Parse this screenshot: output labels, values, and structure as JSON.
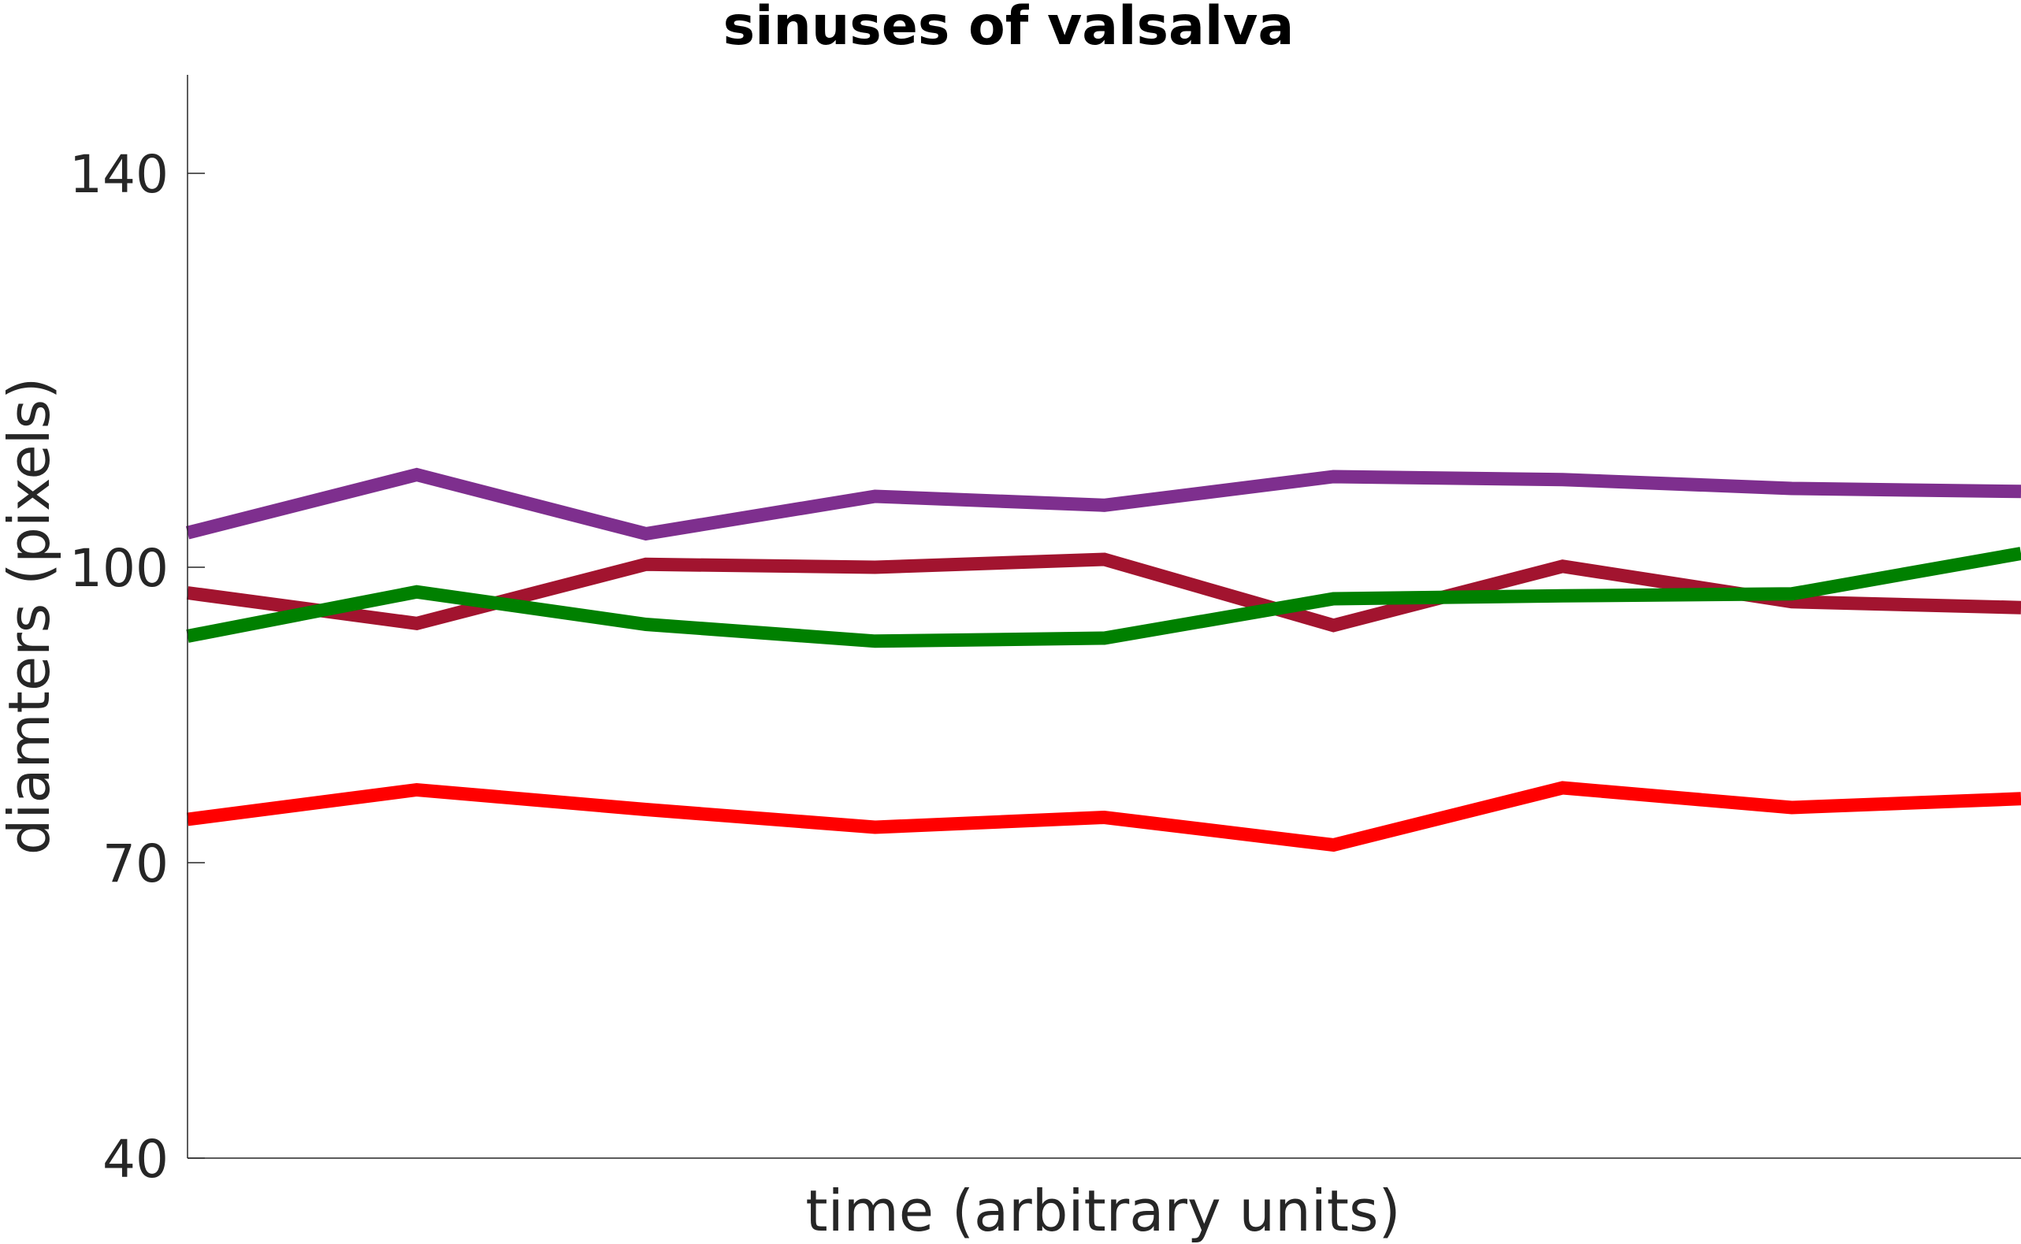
{
  "chart_data": {
    "type": "line",
    "title": "sinuses of valsalva",
    "xlabel": "time (arbitrary units)",
    "ylabel": "diamters (pixels)",
    "ylim": [
      40,
      150
    ],
    "xlim": [
      1,
      9
    ],
    "yticks": [
      40,
      70,
      100,
      140
    ],
    "ytick_labels": [
      "40",
      "70",
      "100",
      "140"
    ],
    "grid": false,
    "legend": "none",
    "x": [
      1,
      2,
      3,
      4,
      5,
      6,
      7,
      8,
      9
    ],
    "series": [
      {
        "color": "#7E2F8E",
        "values": [
          103.5,
          109.4,
          103.4,
          107.2,
          106.3,
          109.2,
          108.9,
          108.0,
          107.7
        ]
      },
      {
        "color": "#A2142F",
        "values": [
          97.4,
          94.3,
          100.3,
          100.0,
          100.8,
          94.1,
          100.1,
          96.5,
          95.9
        ]
      },
      {
        "color": "#008000",
        "values": [
          93.0,
          97.5,
          94.2,
          92.5,
          92.8,
          96.8,
          97.1,
          97.3,
          101.4
        ]
      },
      {
        "color": "#FF0000",
        "values": [
          74.4,
          77.4,
          75.4,
          73.6,
          74.6,
          71.8,
          77.6,
          75.6,
          76.5
        ]
      }
    ]
  }
}
